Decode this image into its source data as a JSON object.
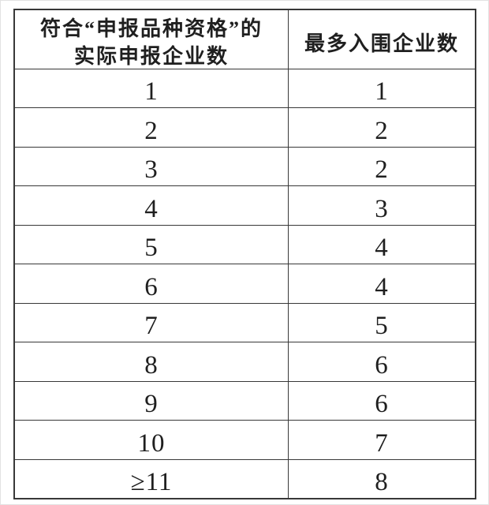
{
  "table": {
    "header": {
      "applicants_line1": "符合“申报品种资格”的",
      "applicants_line2": "实际申报企业数",
      "max_shortlisted": "最多入围企业数"
    },
    "rows": [
      {
        "applicants": "1",
        "max_shortlisted": "1"
      },
      {
        "applicants": "2",
        "max_shortlisted": "2"
      },
      {
        "applicants": "3",
        "max_shortlisted": "2"
      },
      {
        "applicants": "4",
        "max_shortlisted": "3"
      },
      {
        "applicants": "5",
        "max_shortlisted": "4"
      },
      {
        "applicants": "6",
        "max_shortlisted": "4"
      },
      {
        "applicants": "7",
        "max_shortlisted": "5"
      },
      {
        "applicants": "8",
        "max_shortlisted": "6"
      },
      {
        "applicants": "9",
        "max_shortlisted": "6"
      },
      {
        "applicants": "10",
        "max_shortlisted": "7"
      },
      {
        "applicants": "≥11",
        "max_shortlisted": "8"
      }
    ],
    "colors": {
      "border": "#383838",
      "text": "#1f1f1f",
      "background": "#ffffff"
    }
  },
  "chart_data": {
    "type": "table",
    "title": "",
    "columns": [
      "符合“申报品种资格”的实际申报企业数",
      "最多入围企业数"
    ],
    "cells": [
      [
        "1",
        "1"
      ],
      [
        "2",
        "2"
      ],
      [
        "3",
        "2"
      ],
      [
        "4",
        "3"
      ],
      [
        "5",
        "4"
      ],
      [
        "6",
        "4"
      ],
      [
        "7",
        "5"
      ],
      [
        "8",
        "6"
      ],
      [
        "9",
        "6"
      ],
      [
        "10",
        "7"
      ],
      [
        "≥11",
        "8"
      ]
    ]
  }
}
